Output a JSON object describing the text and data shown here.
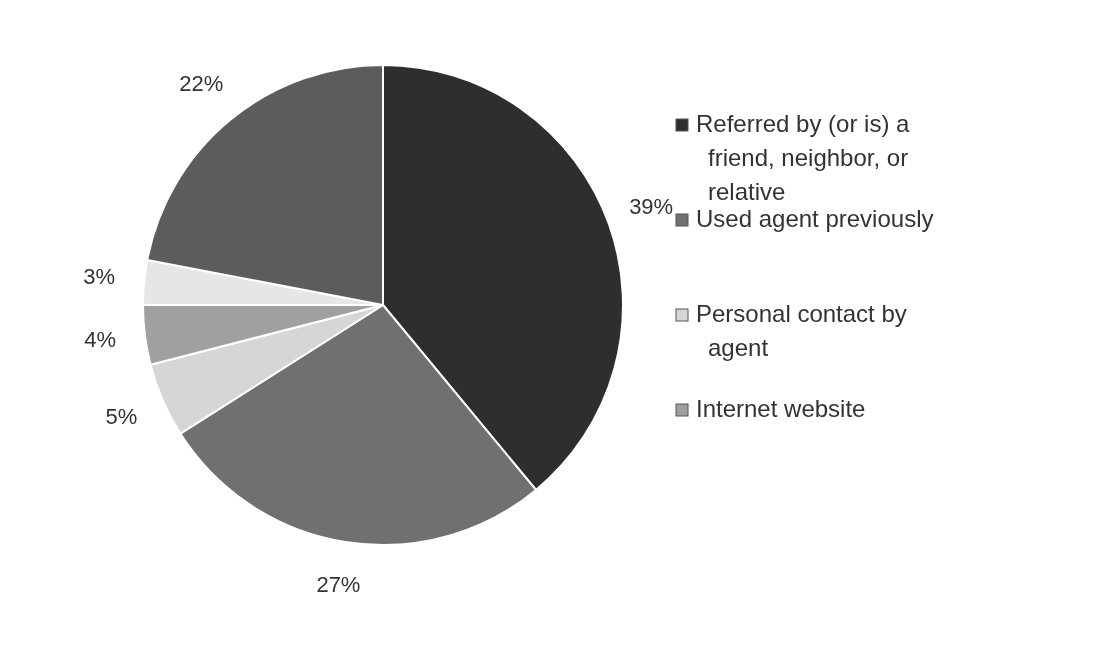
{
  "chart_data": {
    "type": "pie",
    "categories": [
      "Referred by (or is) a friend, neighbor, or relative",
      "Used agent previously",
      "Personal contact by agent",
      "Internet website",
      null,
      null
    ],
    "values": [
      39,
      27,
      5,
      4,
      3,
      22
    ],
    "value_labels": [
      "39%",
      "27%",
      "5%",
      "4%",
      "3%",
      "22%"
    ],
    "colors": [
      "#2e2e2e",
      "#707070",
      "#d6d6d6",
      "#a0a0a0",
      "#e6e6e6",
      "#5c5c5c"
    ],
    "legend": "right"
  }
}
